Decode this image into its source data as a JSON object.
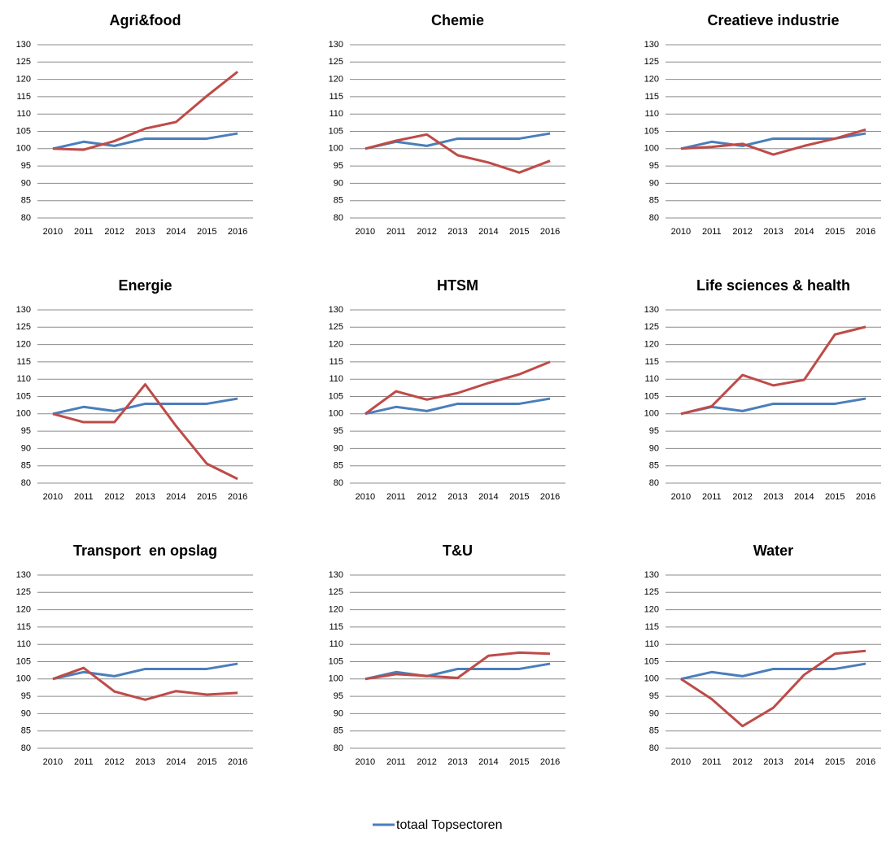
{
  "chart_data": [
    {
      "type": "line",
      "title": "Agri&food",
      "categories": [
        "2010",
        "2011",
        "2012",
        "2013",
        "2014",
        "2015",
        "2016"
      ],
      "ylim": [
        80,
        130
      ],
      "yticks": [
        80,
        85,
        90,
        95,
        100,
        105,
        110,
        115,
        120,
        125,
        130
      ],
      "grid": true,
      "series": [
        {
          "color": "#4a7ebb",
          "values": [
            100,
            102,
            100.8,
            102.9,
            102.9,
            102.9,
            104.4
          ]
        },
        {
          "color": "#be4b48",
          "values": [
            100,
            99.7,
            102.2,
            105.8,
            107.7,
            115.2,
            122.2
          ]
        }
      ]
    },
    {
      "type": "line",
      "title": "Chemie",
      "categories": [
        "2010",
        "2011",
        "2012",
        "2013",
        "2014",
        "2015",
        "2016"
      ],
      "ylim": [
        80,
        130
      ],
      "yticks": [
        80,
        85,
        90,
        95,
        100,
        105,
        110,
        115,
        120,
        125,
        130
      ],
      "grid": true,
      "series": [
        {
          "color": "#4a7ebb",
          "values": [
            100,
            102,
            100.8,
            102.9,
            102.9,
            102.9,
            104.4
          ]
        },
        {
          "color": "#be4b48",
          "values": [
            100,
            102.3,
            104.1,
            98.1,
            96,
            93.1,
            96.5
          ]
        }
      ]
    },
    {
      "type": "line",
      "title": "Creatieve industrie",
      "categories": [
        "2010",
        "2011",
        "2012",
        "2013",
        "2014",
        "2015",
        "2016"
      ],
      "ylim": [
        80,
        130
      ],
      "yticks": [
        80,
        85,
        90,
        95,
        100,
        105,
        110,
        115,
        120,
        125,
        130
      ],
      "grid": true,
      "series": [
        {
          "color": "#4a7ebb",
          "values": [
            100,
            102,
            100.8,
            102.9,
            102.9,
            102.9,
            104.4
          ]
        },
        {
          "color": "#be4b48",
          "values": [
            100,
            100.5,
            101.4,
            98.3,
            100.8,
            102.9,
            105.5
          ]
        }
      ]
    },
    {
      "type": "line",
      "title": "Energie",
      "categories": [
        "2010",
        "2011",
        "2012",
        "2013",
        "2014",
        "2015",
        "2016"
      ],
      "ylim": [
        80,
        130
      ],
      "yticks": [
        80,
        85,
        90,
        95,
        100,
        105,
        110,
        115,
        120,
        125,
        130
      ],
      "grid": true,
      "series": [
        {
          "color": "#4a7ebb",
          "values": [
            100,
            102,
            100.8,
            102.9,
            102.9,
            102.9,
            104.4
          ]
        },
        {
          "color": "#be4b48",
          "values": [
            100,
            97.6,
            97.6,
            108.5,
            96.5,
            85.6,
            81.2
          ]
        }
      ]
    },
    {
      "type": "line",
      "title": "HTSM",
      "categories": [
        "2010",
        "2011",
        "2012",
        "2013",
        "2014",
        "2015",
        "2016"
      ],
      "ylim": [
        80,
        130
      ],
      "yticks": [
        80,
        85,
        90,
        95,
        100,
        105,
        110,
        115,
        120,
        125,
        130
      ],
      "grid": true,
      "series": [
        {
          "color": "#4a7ebb",
          "values": [
            100,
            102,
            100.8,
            102.9,
            102.9,
            102.9,
            104.4
          ]
        },
        {
          "color": "#be4b48",
          "values": [
            100,
            106.5,
            104.1,
            106,
            108.9,
            111.4,
            115
          ]
        }
      ]
    },
    {
      "type": "line",
      "title": "Life sciences & health",
      "categories": [
        "2010",
        "2011",
        "2012",
        "2013",
        "2014",
        "2015",
        "2016"
      ],
      "ylim": [
        80,
        130
      ],
      "yticks": [
        80,
        85,
        90,
        95,
        100,
        105,
        110,
        115,
        120,
        125,
        130
      ],
      "grid": true,
      "series": [
        {
          "color": "#4a7ebb",
          "values": [
            100,
            102,
            100.8,
            102.9,
            102.9,
            102.9,
            104.4
          ]
        },
        {
          "color": "#be4b48",
          "values": [
            100,
            102.2,
            111.2,
            108.2,
            109.8,
            122.9,
            125.1
          ]
        }
      ]
    },
    {
      "type": "line",
      "title": "Transport  en opslag",
      "categories": [
        "2010",
        "2011",
        "2012",
        "2013",
        "2014",
        "2015",
        "2016"
      ],
      "ylim": [
        80,
        130
      ],
      "yticks": [
        80,
        85,
        90,
        95,
        100,
        105,
        110,
        115,
        120,
        125,
        130
      ],
      "grid": true,
      "series": [
        {
          "color": "#4a7ebb",
          "values": [
            100,
            102,
            100.8,
            102.9,
            102.9,
            102.9,
            104.4
          ]
        },
        {
          "color": "#be4b48",
          "values": [
            100,
            103.2,
            96.4,
            94,
            96.5,
            95.5,
            96
          ]
        }
      ]
    },
    {
      "type": "line",
      "title": "T&U",
      "categories": [
        "2010",
        "2011",
        "2012",
        "2013",
        "2014",
        "2015",
        "2016"
      ],
      "ylim": [
        80,
        130
      ],
      "yticks": [
        80,
        85,
        90,
        95,
        100,
        105,
        110,
        115,
        120,
        125,
        130
      ],
      "grid": true,
      "series": [
        {
          "color": "#4a7ebb",
          "values": [
            100,
            102,
            100.8,
            102.9,
            102.9,
            102.9,
            104.4
          ]
        },
        {
          "color": "#be4b48",
          "values": [
            100,
            101.4,
            100.9,
            100.3,
            106.7,
            107.6,
            107.3
          ]
        }
      ]
    },
    {
      "type": "line",
      "title": "Water",
      "categories": [
        "2010",
        "2011",
        "2012",
        "2013",
        "2014",
        "2015",
        "2016"
      ],
      "ylim": [
        80,
        130
      ],
      "yticks": [
        80,
        85,
        90,
        95,
        100,
        105,
        110,
        115,
        120,
        125,
        130
      ],
      "grid": true,
      "series": [
        {
          "color": "#4a7ebb",
          "values": [
            100,
            102,
            100.8,
            102.9,
            102.9,
            102.9,
            104.4
          ]
        },
        {
          "color": "#be4b48",
          "values": [
            100,
            94.2,
            86.4,
            91.7,
            101.2,
            107.3,
            108.1
          ]
        }
      ]
    }
  ],
  "legend": {
    "name": "totaal Topsectoren",
    "color": "#4a7ebb"
  }
}
